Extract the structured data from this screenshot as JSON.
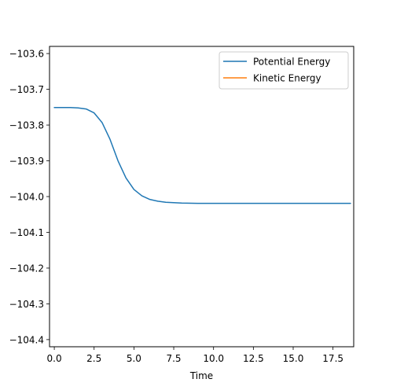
{
  "chart_data": {
    "type": "line",
    "title": "",
    "xlabel": "Time",
    "ylabel": "",
    "xlim": [
      -0.3,
      18.8
    ],
    "ylim": [
      -104.42,
      -103.58
    ],
    "xticks": [
      0.0,
      2.5,
      5.0,
      7.5,
      10.0,
      12.5,
      15.0,
      17.5
    ],
    "xtick_labels": [
      "0.0",
      "2.5",
      "5.0",
      "7.5",
      "10.0",
      "12.5",
      "15.0",
      "17.5"
    ],
    "yticks": [
      -103.6,
      -103.7,
      -103.8,
      -103.9,
      -104.0,
      -104.1,
      -104.2,
      -104.3,
      -104.4
    ],
    "ytick_labels": [
      "−103.6",
      "−103.7",
      "−103.8",
      "−103.9",
      "−104.0",
      "−104.1",
      "−104.2",
      "−104.3",
      "−104.4"
    ],
    "grid": false,
    "legend_position": "top-right",
    "series": [
      {
        "name": "Potential Energy",
        "color": "#1f77b4",
        "x": [
          0.0,
          1.0,
          1.5,
          2.0,
          2.5,
          3.0,
          3.5,
          4.0,
          4.5,
          5.0,
          5.5,
          6.0,
          6.5,
          7.0,
          7.5,
          8.0,
          9.0,
          10.0,
          11.0,
          12.0,
          13.0,
          14.0,
          15.0,
          16.0,
          17.0,
          18.0,
          18.6
        ],
        "y": [
          -103.751,
          -103.751,
          -103.752,
          -103.755,
          -103.766,
          -103.793,
          -103.84,
          -103.9,
          -103.948,
          -103.98,
          -103.998,
          -104.008,
          -104.013,
          -104.016,
          -104.017,
          -104.018,
          -104.019,
          -104.019,
          -104.019,
          -104.019,
          -104.019,
          -104.019,
          -104.019,
          -104.019,
          -104.019,
          -104.019,
          -104.019
        ]
      },
      {
        "name": "Kinetic Energy",
        "color": "#ff7f0e",
        "x": [],
        "y": []
      }
    ]
  }
}
